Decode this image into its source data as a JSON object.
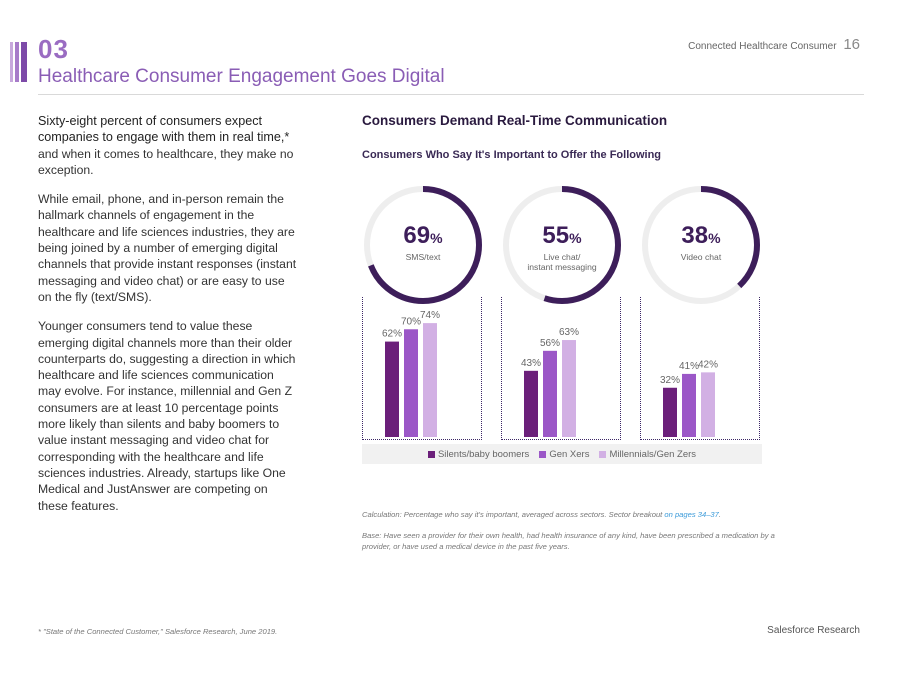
{
  "header": {
    "section_number": "03",
    "title": "Healthcare Consumer Engagement Goes Digital",
    "report_name": "Connected Healthcare Consumer",
    "page_number": "16"
  },
  "body": {
    "lead": "Sixty-eight percent of consumers expect companies to engage with them in real time,*",
    "lead_cont": " and when it comes to healthcare, they make no exception.",
    "para2": "While email, phone, and in-person remain the hallmark channels of engagement in the healthcare and life sciences industries, they are being joined by a number of emerging digital channels that provide instant responses (instant messaging and video chat) or are easy to use on the fly (text/SMS).",
    "para3": "Younger consumers tend to value these emerging digital channels more than their older counterparts do, suggesting a direction in which healthcare and life sciences communication may evolve. For instance, millennial and Gen Z consumers are at least 10 percentage points more likely than silents and baby boomers to value instant messaging and video chat for corresponding with the healthcare and life sciences industries. Already, startups like One Medical and JustAnswer are competing on these features."
  },
  "chart_data": {
    "type": "bar",
    "title": "Consumers Demand Real-Time Communication",
    "subtitle": "Consumers Who Say It's Important to Offer the Following",
    "categories": [
      "SMS/text",
      "Live chat/ instant messaging",
      "Video chat"
    ],
    "overall": [
      {
        "value": 69,
        "label_line1": "SMS/text",
        "label_line2": ""
      },
      {
        "value": 55,
        "label_line1": "Live chat/",
        "label_line2": "instant messaging"
      },
      {
        "value": 38,
        "label_line1": "Video chat",
        "label_line2": ""
      }
    ],
    "series": [
      {
        "name": "Silents/baby boomers",
        "color": "#6b1f7a",
        "values": [
          62,
          43,
          32
        ]
      },
      {
        "name": "Gen Xers",
        "color": "#9b57c7",
        "values": [
          70,
          56,
          41
        ]
      },
      {
        "name": "Millennials/Gen Zers",
        "color": "#d2b0e4",
        "values": [
          74,
          63,
          42
        ]
      }
    ],
    "ylim": [
      0,
      80
    ]
  },
  "colors": {
    "donut_fill": "#3d1e5a",
    "donut_track": "#eeeeee"
  },
  "notes": {
    "calc": "Calculation: Percentage who say it's important, averaged across sectors. Sector breakout ",
    "calc_link": "on pages 34–37",
    "calc_end": ".",
    "base": "Base: Have seen a provider for their own health, had health insurance of any kind, have been prescribed a medication by a provider, or have used a medical device in the past five years."
  },
  "footer": {
    "footnote": "* \"State of the Connected Customer,\" Salesforce Research, June 2019.",
    "brand": "Salesforce Research"
  }
}
